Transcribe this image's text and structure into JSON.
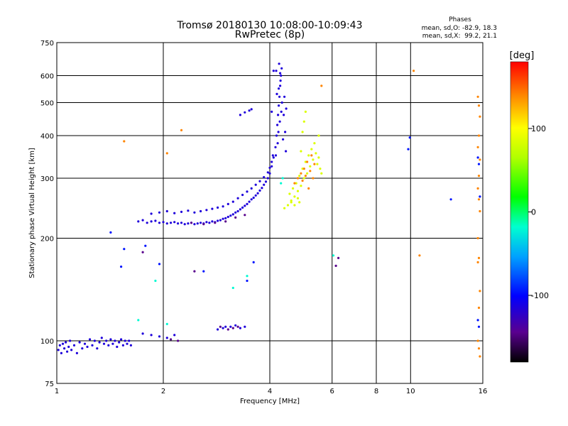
{
  "chart_data": {
    "type": "scatter",
    "title": "Tromsø 20180130 10:08:00-10:09:43",
    "subtitle": "RwPretec (8p)",
    "stats": {
      "heading": "Phases",
      "line_o": "mean, sd,O: -82.9, 18.3",
      "line_x": "mean, sd,X:  99.2, 21.1"
    },
    "xlabel": "Frequency [MHz]",
    "ylabel": "Stationary phase Virtual Height [km]",
    "x_scale": "log",
    "y_scale": "log",
    "xlim": [
      1,
      16
    ],
    "ylim": [
      75,
      750
    ],
    "x_ticks": [
      1,
      2,
      4,
      6,
      8,
      10,
      16
    ],
    "x_tick_labels": [
      "1",
      "2",
      "4",
      "6",
      "8",
      "10",
      "16"
    ],
    "y_ticks": [
      75,
      100,
      200,
      300,
      400,
      500,
      600,
      750
    ],
    "y_tick_labels": [
      "75",
      "100",
      "200",
      "300",
      "400",
      "500",
      "600",
      "750"
    ],
    "grid": true,
    "colorbar": {
      "label": "[deg]",
      "range": [
        -180,
        180
      ],
      "ticks": [
        100,
        0,
        -100
      ],
      "tick_labels": [
        "100",
        "0",
        "-100"
      ]
    },
    "series": [
      {
        "phase": -115,
        "points": [
          [
            1.01,
            94
          ],
          [
            1.02,
            97
          ],
          [
            1.03,
            92
          ],
          [
            1.04,
            98
          ],
          [
            1.05,
            95
          ],
          [
            1.06,
            99
          ],
          [
            1.07,
            93
          ],
          [
            1.08,
            96
          ],
          [
            1.09,
            100
          ],
          [
            1.1,
            94
          ],
          [
            1.12,
            97
          ],
          [
            1.14,
            92
          ],
          [
            1.16,
            99
          ],
          [
            1.18,
            95
          ],
          [
            1.2,
            98
          ],
          [
            1.22,
            96
          ],
          [
            1.24,
            101
          ],
          [
            1.26,
            97
          ],
          [
            1.28,
            100
          ],
          [
            1.3,
            95
          ],
          [
            1.32,
            99
          ],
          [
            1.34,
            102
          ],
          [
            1.36,
            98
          ],
          [
            1.38,
            100
          ],
          [
            1.4,
            97
          ],
          [
            1.42,
            101
          ],
          [
            1.44,
            98
          ],
          [
            1.46,
            100
          ],
          [
            1.48,
            96
          ],
          [
            1.5,
            99
          ],
          [
            1.52,
            101
          ],
          [
            1.54,
            97
          ],
          [
            1.56,
            100
          ],
          [
            1.58,
            98
          ],
          [
            1.6,
            100
          ],
          [
            1.62,
            97
          ],
          [
            1.75,
            105
          ],
          [
            1.85,
            104
          ],
          [
            1.95,
            103
          ],
          [
            2.05,
            102
          ],
          [
            2.15,
            104
          ],
          [
            1.7,
            224
          ],
          [
            1.75,
            226
          ],
          [
            1.8,
            222
          ],
          [
            1.85,
            224
          ],
          [
            1.9,
            225
          ],
          [
            1.95,
            222
          ],
          [
            2.0,
            223
          ],
          [
            2.05,
            221
          ],
          [
            2.1,
            222
          ],
          [
            2.15,
            223
          ],
          [
            2.2,
            221
          ],
          [
            2.25,
            222
          ],
          [
            2.3,
            220
          ],
          [
            2.35,
            221
          ],
          [
            2.4,
            222
          ],
          [
            2.45,
            220
          ],
          [
            2.5,
            221
          ],
          [
            2.55,
            222
          ],
          [
            2.6,
            221
          ],
          [
            2.65,
            223
          ],
          [
            2.7,
            222
          ],
          [
            2.75,
            224
          ],
          [
            2.8,
            223
          ],
          [
            2.85,
            225
          ],
          [
            2.9,
            226
          ],
          [
            2.95,
            228
          ],
          [
            3.0,
            229
          ],
          [
            3.05,
            231
          ],
          [
            3.1,
            233
          ],
          [
            3.15,
            235
          ],
          [
            3.2,
            238
          ],
          [
            3.25,
            240
          ],
          [
            3.3,
            243
          ],
          [
            3.35,
            246
          ],
          [
            3.4,
            249
          ],
          [
            3.45,
            252
          ],
          [
            3.5,
            256
          ],
          [
            3.55,
            260
          ],
          [
            3.6,
            263
          ],
          [
            3.65,
            267
          ],
          [
            3.7,
            271
          ],
          [
            3.75,
            276
          ],
          [
            3.8,
            281
          ],
          [
            3.85,
            287
          ],
          [
            3.9,
            293
          ],
          [
            3.95,
            300
          ],
          [
            4.0,
            310
          ],
          [
            4.05,
            325
          ],
          [
            4.1,
            345
          ],
          [
            4.15,
            370
          ],
          [
            4.18,
            400
          ],
          [
            4.2,
            430
          ],
          [
            4.22,
            460
          ],
          [
            4.24,
            490
          ],
          [
            4.26,
            520
          ],
          [
            4.28,
            560
          ],
          [
            4.3,
            600
          ],
          [
            4.32,
            630
          ],
          [
            4.25,
            650
          ],
          [
            4.29,
            580
          ],
          [
            4.16,
            350
          ],
          [
            4.21,
            380
          ],
          [
            4.23,
            410
          ],
          [
            4.27,
            440
          ],
          [
            4.31,
            470
          ],
          [
            4.33,
            500
          ],
          [
            4.19,
            530
          ],
          [
            4.24,
            550
          ],
          [
            4.28,
            610
          ],
          [
            4.17,
            620
          ],
          [
            4.1,
            620
          ],
          [
            4.05,
            470
          ],
          [
            4.4,
            520
          ],
          [
            4.45,
            480
          ],
          [
            4.38,
            460
          ],
          [
            4.42,
            410
          ],
          [
            4.36,
            390
          ],
          [
            4.44,
            360
          ],
          [
            1.85,
            236
          ],
          [
            1.95,
            238
          ],
          [
            2.05,
            240
          ],
          [
            2.15,
            237
          ],
          [
            2.25,
            239
          ],
          [
            2.35,
            241
          ],
          [
            2.45,
            238
          ],
          [
            2.55,
            240
          ],
          [
            2.65,
            242
          ],
          [
            2.75,
            244
          ],
          [
            2.85,
            246
          ],
          [
            2.95,
            248
          ],
          [
            3.05,
            252
          ],
          [
            3.15,
            256
          ],
          [
            3.25,
            262
          ],
          [
            3.35,
            268
          ],
          [
            3.45,
            274
          ],
          [
            3.55,
            280
          ],
          [
            3.65,
            287
          ],
          [
            3.75,
            294
          ],
          [
            3.85,
            302
          ],
          [
            3.95,
            312
          ],
          [
            4.0,
            322
          ],
          [
            4.05,
            335
          ],
          [
            4.08,
            350
          ],
          [
            3.3,
            460
          ],
          [
            3.4,
            468
          ],
          [
            3.5,
            474
          ],
          [
            3.55,
            478
          ],
          [
            3.1,
            110
          ],
          [
            3.2,
            111
          ],
          [
            3.3,
            109
          ],
          [
            3.4,
            110
          ],
          [
            2.85,
            108
          ],
          [
            2.95,
            109
          ],
          [
            3.0,
            110
          ]
        ]
      },
      {
        "phase": -145,
        "points": [
          [
            2.4,
            222
          ],
          [
            2.6,
            220
          ],
          [
            2.8,
            222
          ],
          [
            3.0,
            224
          ],
          [
            3.2,
            230
          ],
          [
            3.4,
            234
          ],
          [
            2.9,
            110
          ],
          [
            3.05,
            108
          ],
          [
            3.15,
            109
          ],
          [
            3.25,
            110
          ],
          [
            2.1,
            101
          ],
          [
            2.2,
            100
          ],
          [
            1.75,
            182
          ],
          [
            2.45,
            160
          ],
          [
            6.15,
            166
          ],
          [
            6.25,
            175
          ]
        ]
      },
      {
        "phase": 85,
        "points": [
          [
            4.4,
            245
          ],
          [
            4.5,
            250
          ],
          [
            4.6,
            258
          ],
          [
            4.7,
            265
          ],
          [
            4.8,
            275
          ],
          [
            4.9,
            285
          ],
          [
            5.0,
            300
          ],
          [
            5.1,
            310
          ],
          [
            5.2,
            325
          ],
          [
            5.3,
            340
          ],
          [
            5.4,
            355
          ],
          [
            5.5,
            345
          ],
          [
            4.55,
            270
          ],
          [
            4.65,
            280
          ],
          [
            4.75,
            290
          ],
          [
            4.85,
            305
          ],
          [
            4.95,
            320
          ],
          [
            5.05,
            335
          ],
          [
            5.15,
            350
          ],
          [
            5.25,
            365
          ],
          [
            5.35,
            380
          ],
          [
            4.95,
            410
          ],
          [
            5.0,
            440
          ],
          [
            5.05,
            470
          ],
          [
            4.9,
            360
          ],
          [
            5.45,
            330
          ],
          [
            5.55,
            320
          ],
          [
            5.6,
            310
          ],
          [
            5.5,
            400
          ],
          [
            4.7,
            250
          ],
          [
            4.6,
            255
          ],
          [
            4.8,
            262
          ],
          [
            4.85,
            255
          ]
        ]
      },
      {
        "phase": 140,
        "points": [
          [
            4.7,
            290
          ],
          [
            4.8,
            300
          ],
          [
            4.9,
            310
          ],
          [
            5.0,
            320
          ],
          [
            5.1,
            335
          ],
          [
            5.2,
            315
          ],
          [
            5.3,
            300
          ],
          [
            5.15,
            280
          ],
          [
            4.95,
            295
          ],
          [
            5.05,
            305
          ],
          [
            5.35,
            330
          ],
          [
            5.25,
            350
          ],
          [
            5.6,
            560
          ],
          [
            10.2,
            620
          ],
          [
            15.5,
            520
          ],
          [
            15.6,
            490
          ],
          [
            15.7,
            455
          ],
          [
            15.6,
            400
          ],
          [
            15.5,
            370
          ],
          [
            15.7,
            340
          ],
          [
            15.6,
            305
          ],
          [
            15.5,
            280
          ],
          [
            15.6,
            260
          ],
          [
            15.7,
            240
          ],
          [
            15.5,
            200
          ],
          [
            15.6,
            175
          ],
          [
            15.5,
            170
          ],
          [
            15.7,
            140
          ],
          [
            15.6,
            125
          ],
          [
            15.5,
            100
          ],
          [
            15.6,
            95
          ],
          [
            15.7,
            90
          ],
          [
            10.6,
            178
          ],
          [
            1.55,
            385
          ],
          [
            2.05,
            355
          ],
          [
            2.25,
            415
          ]
        ]
      },
      {
        "phase": -20,
        "points": [
          [
            4.3,
            290
          ],
          [
            4.35,
            300
          ],
          [
            1.7,
            115
          ],
          [
            2.05,
            112
          ],
          [
            3.15,
            143
          ],
          [
            3.45,
            155
          ],
          [
            1.9,
            150
          ],
          [
            6.05,
            178
          ]
        ]
      },
      {
        "phase": -95,
        "points": [
          [
            1.42,
            208
          ],
          [
            1.55,
            186
          ],
          [
            1.52,
            165
          ],
          [
            1.78,
            190
          ],
          [
            1.95,
            168
          ],
          [
            2.6,
            160
          ],
          [
            3.45,
            150
          ],
          [
            3.6,
            170
          ],
          [
            9.85,
            365
          ],
          [
            9.95,
            395
          ],
          [
            13.0,
            260
          ],
          [
            15.5,
            345
          ],
          [
            15.6,
            330
          ],
          [
            15.7,
            265
          ],
          [
            15.5,
            115
          ],
          [
            15.6,
            110
          ]
        ]
      }
    ]
  }
}
